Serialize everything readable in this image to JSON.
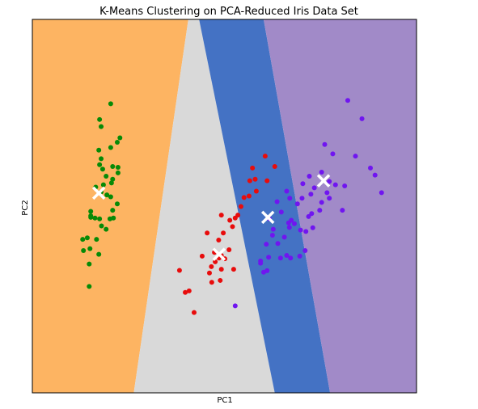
{
  "chart_data": {
    "type": "scatter",
    "title": "K-Means Clustering on PCA-Reduced Iris Data Set",
    "xlabel": "PC1",
    "ylabel": "PC2",
    "xlim": [
      0,
      100
    ],
    "ylim": [
      0,
      100
    ],
    "ticks_visible": false,
    "grid": false,
    "legend": "none",
    "regions": [
      {
        "name": "region-orange",
        "color": "#fdb462",
        "polygon": [
          [
            0,
            100
          ],
          [
            40.6,
            100
          ],
          [
            26.4,
            0
          ],
          [
            0,
            0
          ]
        ]
      },
      {
        "name": "region-gray",
        "color": "#d9d9d9",
        "polygon": [
          [
            40.6,
            100
          ],
          [
            43.4,
            100
          ],
          [
            63.1,
            0
          ],
          [
            26.4,
            0
          ]
        ]
      },
      {
        "name": "region-blue",
        "color": "#4472c4",
        "polygon": [
          [
            43.4,
            100
          ],
          [
            60.2,
            100
          ],
          [
            77.5,
            0
          ],
          [
            63.1,
            0
          ]
        ]
      },
      {
        "name": "region-purple",
        "color": "#a18ac8",
        "polygon": [
          [
            60.2,
            100
          ],
          [
            100,
            100
          ],
          [
            100,
            0
          ],
          [
            77.5,
            0
          ]
        ]
      }
    ],
    "series": [
      {
        "name": "cluster-green",
        "color": "#068a06",
        "points": [
          [
            20.4,
            77.4
          ],
          [
            17.5,
            73.2
          ],
          [
            17.9,
            71.3
          ],
          [
            22.1,
            67.1
          ],
          [
            22.8,
            68.3
          ],
          [
            17.3,
            65.0
          ],
          [
            20.4,
            65.7
          ],
          [
            17.9,
            62.7
          ],
          [
            17.5,
            61.1
          ],
          [
            18.3,
            59.9
          ],
          [
            19.2,
            58.0
          ],
          [
            22.3,
            58.9
          ],
          [
            20.9,
            57.2
          ],
          [
            20.9,
            60.6
          ],
          [
            22.3,
            60.4
          ],
          [
            20.6,
            56.2
          ],
          [
            18.5,
            55.7
          ],
          [
            16.5,
            55.1
          ],
          [
            17.9,
            53.8
          ],
          [
            19.4,
            53.0
          ],
          [
            20.4,
            52.5
          ],
          [
            22.1,
            50.6
          ],
          [
            20.9,
            48.9
          ],
          [
            20.2,
            46.6
          ],
          [
            17.5,
            46.6
          ],
          [
            18.0,
            44.7
          ],
          [
            15.2,
            48.6
          ],
          [
            16.3,
            46.8
          ],
          [
            21.1,
            46.8
          ],
          [
            15.2,
            47.0
          ],
          [
            15.2,
            47.4
          ],
          [
            13.1,
            41.1
          ],
          [
            16.7,
            41.1
          ],
          [
            19.2,
            43.8
          ],
          [
            17.3,
            37.1
          ],
          [
            15.0,
            38.6
          ],
          [
            14.3,
            41.5
          ],
          [
            13.3,
            38.1
          ],
          [
            14.8,
            34.5
          ],
          [
            14.8,
            28.5
          ]
        ]
      },
      {
        "name": "cluster-red",
        "color": "#e80c0c",
        "points": [
          [
            60.6,
            63.4
          ],
          [
            63.1,
            60.6
          ],
          [
            57.3,
            60.2
          ],
          [
            61.1,
            56.8
          ],
          [
            58.0,
            57.2
          ],
          [
            56.6,
            56.8
          ],
          [
            58.3,
            54.0
          ],
          [
            56.4,
            52.7
          ],
          [
            55.1,
            52.3
          ],
          [
            54.3,
            49.9
          ],
          [
            53.5,
            47.6
          ],
          [
            52.8,
            46.8
          ],
          [
            49.2,
            47.6
          ],
          [
            51.4,
            46.2
          ],
          [
            52.1,
            44.5
          ],
          [
            49.7,
            42.8
          ],
          [
            45.5,
            42.8
          ],
          [
            48.5,
            40.9
          ],
          [
            51.2,
            38.3
          ],
          [
            49.2,
            36.8
          ],
          [
            47.4,
            37.6
          ],
          [
            44.2,
            36.6
          ],
          [
            46.6,
            33.8
          ],
          [
            52.4,
            33.1
          ],
          [
            50.1,
            35.9
          ],
          [
            48.6,
            36.1
          ],
          [
            47.6,
            35.1
          ],
          [
            49.2,
            33.1
          ],
          [
            46.1,
            32.1
          ],
          [
            48.9,
            30.1
          ],
          [
            46.7,
            29.6
          ],
          [
            38.3,
            32.8
          ],
          [
            40.8,
            27.3
          ],
          [
            39.8,
            26.9
          ],
          [
            42.1,
            21.5
          ]
        ]
      },
      {
        "name": "cluster-purple",
        "color": "#7015f0",
        "points": [
          [
            82.1,
            78.3
          ],
          [
            85.8,
            73.4
          ],
          [
            76.1,
            66.5
          ],
          [
            78.2,
            64.0
          ],
          [
            84.1,
            63.4
          ],
          [
            88.0,
            60.2
          ],
          [
            89.2,
            58.3
          ],
          [
            72.1,
            58.0
          ],
          [
            75.3,
            59.1
          ],
          [
            77.3,
            56.6
          ],
          [
            78.9,
            55.7
          ],
          [
            81.3,
            55.4
          ],
          [
            70.4,
            56.0
          ],
          [
            73.4,
            54.9
          ],
          [
            76.7,
            53.6
          ],
          [
            72.5,
            53.2
          ],
          [
            77.3,
            52.1
          ],
          [
            66.2,
            54.0
          ],
          [
            67.0,
            52.1
          ],
          [
            70.2,
            52.1
          ],
          [
            75.3,
            51.0
          ],
          [
            90.9,
            53.6
          ],
          [
            63.7,
            51.2
          ],
          [
            69.0,
            50.6
          ],
          [
            72.7,
            48.0
          ],
          [
            71.9,
            47.2
          ],
          [
            67.4,
            46.2
          ],
          [
            74.8,
            48.9
          ],
          [
            80.7,
            48.9
          ],
          [
            64.8,
            48.4
          ],
          [
            66.7,
            45.5
          ],
          [
            68.2,
            45.3
          ],
          [
            61.7,
            46.6
          ],
          [
            62.7,
            43.8
          ],
          [
            69.8,
            43.6
          ],
          [
            73.0,
            44.2
          ],
          [
            71.2,
            43.2
          ],
          [
            66.9,
            44.3
          ],
          [
            62.5,
            42.2
          ],
          [
            65.6,
            41.7
          ],
          [
            63.9,
            40.0
          ],
          [
            60.9,
            39.8
          ],
          [
            66.2,
            36.8
          ],
          [
            71.0,
            38.1
          ],
          [
            69.6,
            36.6
          ],
          [
            67.2,
            36.1
          ],
          [
            64.6,
            36.1
          ],
          [
            61.5,
            36.3
          ],
          [
            59.4,
            35.3
          ],
          [
            59.4,
            34.7
          ],
          [
            61.1,
            32.7
          ],
          [
            60.2,
            32.3
          ],
          [
            52.8,
            23.3
          ]
        ]
      }
    ],
    "centroids": [
      {
        "name": "centroid-green",
        "x": 17.3,
        "y": 53.5
      },
      {
        "name": "centroid-red",
        "x": 48.6,
        "y": 37.1
      },
      {
        "name": "centroid-blue",
        "x": 61.3,
        "y": 47.0
      },
      {
        "name": "centroid-purple",
        "x": 75.8,
        "y": 56.8
      }
    ]
  }
}
